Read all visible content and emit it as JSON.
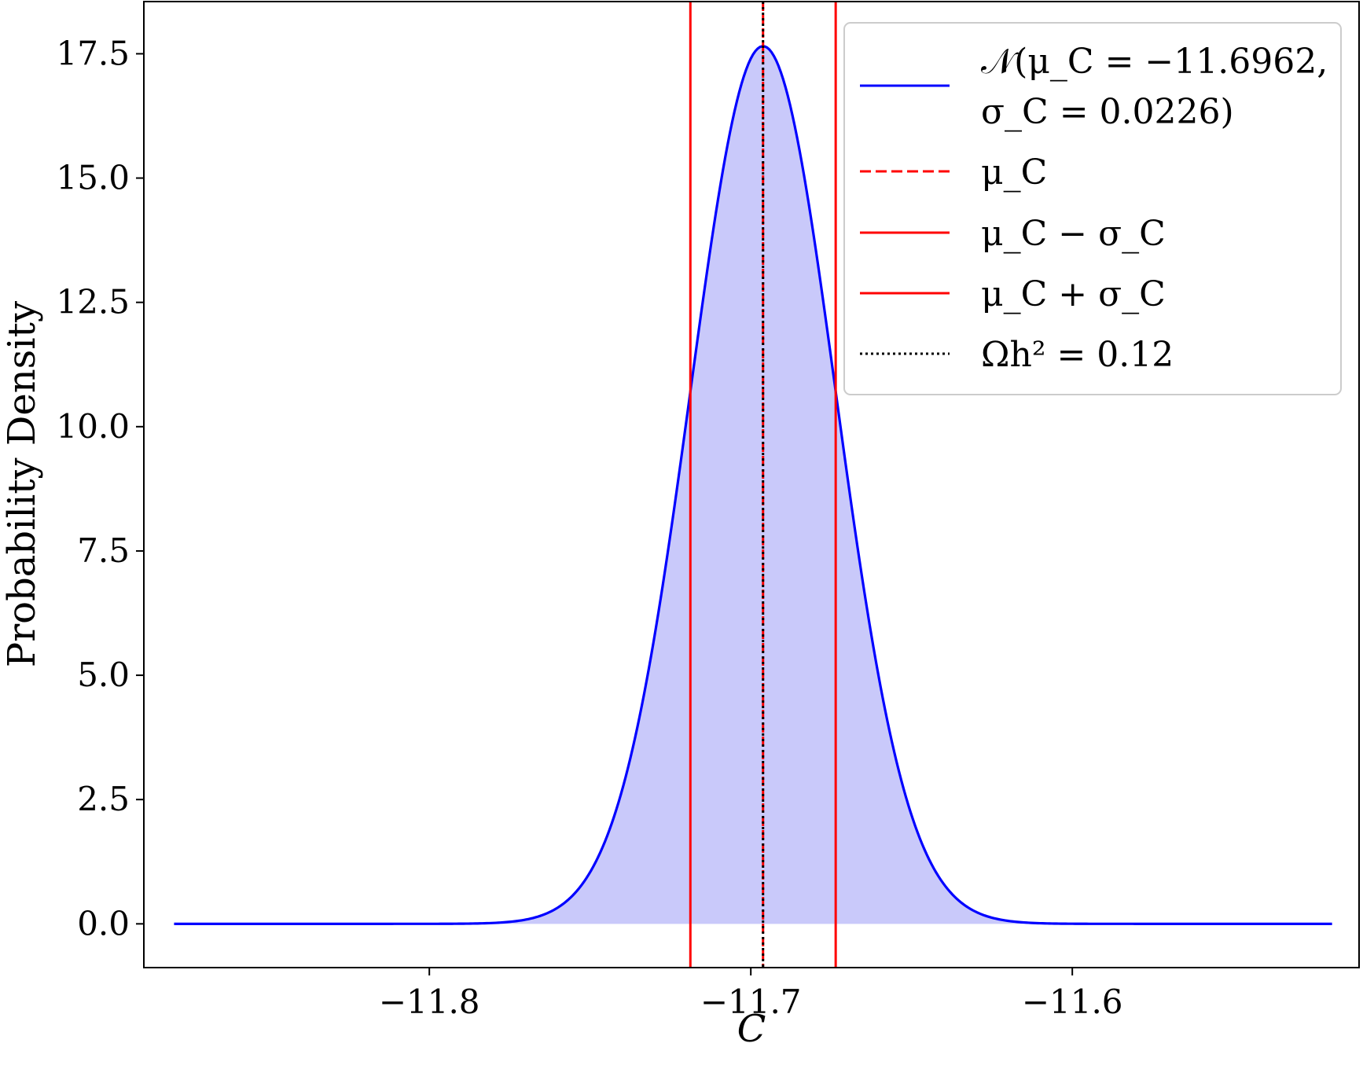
{
  "chart_data": {
    "type": "line",
    "title": "",
    "xlabel": "C",
    "ylabel": "Probability Density",
    "xlim": [
      -11.8888,
      -11.5108
    ],
    "ylim": [
      -0.88,
      18.55
    ],
    "grid": false,
    "legend_position": "top-right",
    "x_ticks": [
      -11.8,
      -11.7,
      -11.6
    ],
    "x_tick_labels": [
      "−11.8",
      "−11.7",
      "−11.6"
    ],
    "y_ticks": [
      0.0,
      2.5,
      5.0,
      7.5,
      10.0,
      12.5,
      15.0,
      17.5
    ],
    "y_tick_labels": [
      "0.0",
      "2.5",
      "5.0",
      "7.5",
      "10.0",
      "12.5",
      "15.0",
      "17.5"
    ],
    "distribution": {
      "mu": -11.6962,
      "sigma": 0.0226,
      "x_range": [
        -11.8794,
        -11.5192
      ],
      "peak_density": 17.65,
      "fill": true
    },
    "vlines": [
      {
        "id": "mu",
        "x": -11.6962,
        "color": "#ff0000",
        "style": "dashed"
      },
      {
        "id": "mu-minus",
        "x": -11.7188,
        "color": "#ff0000",
        "style": "solid"
      },
      {
        "id": "mu-plus",
        "x": -11.6736,
        "color": "#ff0000",
        "style": "solid"
      },
      {
        "id": "omega",
        "x": -11.6962,
        "color": "#000000",
        "style": "dotted"
      }
    ],
    "legend": [
      {
        "label_line1": "𝒩(μ_C = −11.6962,",
        "label_line2": "σ_C = 0.0226)",
        "color": "#0000ff",
        "style": "solid"
      },
      {
        "label": "μ_C",
        "color": "#ff0000",
        "style": "dashed"
      },
      {
        "label": "μ_C − σ_C",
        "color": "#ff0000",
        "style": "solid"
      },
      {
        "label": "μ_C + σ_C",
        "color": "#ff0000",
        "style": "solid"
      },
      {
        "label": "Ωh² = 0.12",
        "color": "#000000",
        "style": "dotted"
      }
    ],
    "colors": {
      "curve": "#0000ff",
      "fill": "#c9c9fa",
      "sigma_lines": "#ff0000",
      "mean_line": "#ff0000",
      "omega_line": "#000000"
    }
  }
}
